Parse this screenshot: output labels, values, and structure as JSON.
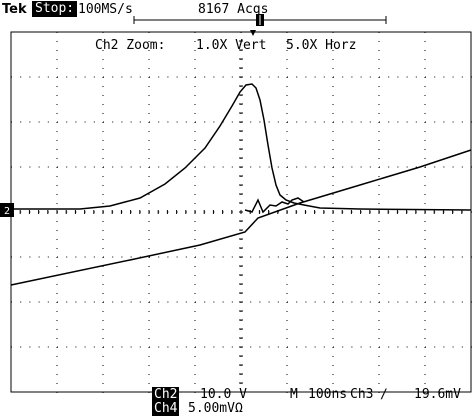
{
  "header": {
    "brand": "Tek",
    "status": "Stop:",
    "sample_rate": "100MS/s",
    "acquisitions": "8167 Acqs"
  },
  "zoom": {
    "channel": "Ch2 Zoom:",
    "vertical": "1.0X Vert",
    "horizontal": "5.0X Horz"
  },
  "marker": {
    "ground_marker": "2"
  },
  "footer": {
    "ch2_label": "Ch2",
    "ch2_scale": "10.0 V",
    "timebase_label": "M",
    "timebase": "100ns",
    "trigger_source": "Ch3",
    "trigger_level": "19.6mV",
    "ch4_label": "Ch4",
    "ch4_scale": "5.00mVΩ"
  }
}
